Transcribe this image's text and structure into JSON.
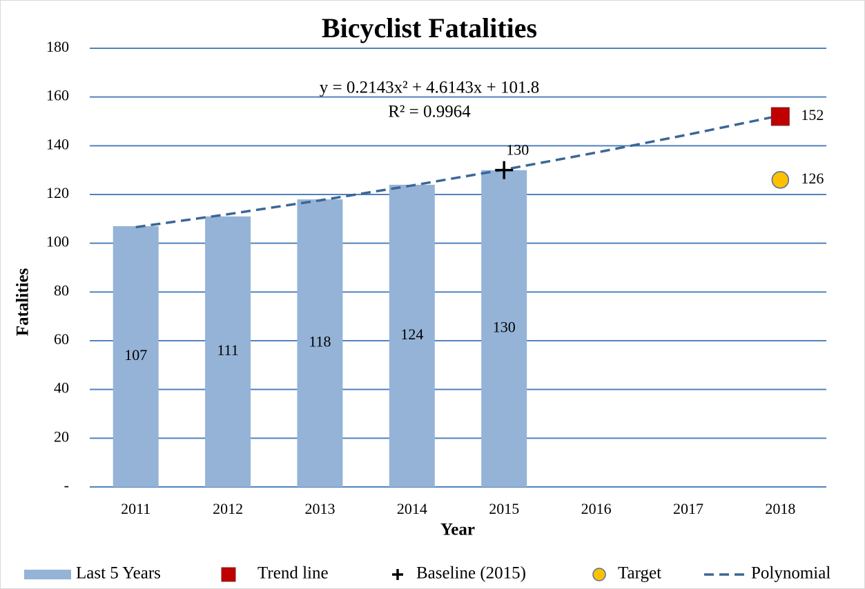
{
  "chart_data": {
    "type": "bar",
    "title": "Bicyclist Fatalities",
    "x_label": "Year",
    "y_label": "Fatalities",
    "annotations": [
      "y = 0.2143x² + 4.6143x + 101.8",
      "R² = 0.9964"
    ],
    "categories": [
      "2011",
      "2012",
      "2013",
      "2014",
      "2015",
      "2016",
      "2017",
      "2018"
    ],
    "ylim": [
      0,
      180
    ],
    "yticks": [
      {
        "value": 0,
        "label": "-"
      },
      20,
      40,
      60,
      80,
      100,
      120,
      140,
      160,
      180
    ],
    "grid": true,
    "legend": "bottom",
    "series": [
      {
        "name": "Last 5 Years",
        "type": "bar",
        "color": "#95b3d7",
        "values": [
          107,
          111,
          118,
          124,
          130,
          null,
          null,
          null
        ]
      },
      {
        "name": "Trend line",
        "type": "square",
        "color": "#c00000",
        "values": [
          null,
          null,
          null,
          null,
          null,
          null,
          null,
          152
        ]
      },
      {
        "name": "Baseline (2015)",
        "type": "plus",
        "color": "#000000",
        "values": [
          null,
          null,
          null,
          null,
          130,
          null,
          null,
          null
        ]
      },
      {
        "name": "Target",
        "type": "circle",
        "color": "#ffc000",
        "values": [
          null,
          null,
          null,
          null,
          null,
          null,
          null,
          126
        ]
      },
      {
        "name": "Polynomial",
        "type": "line",
        "color": "#3c6696",
        "values": [
          106.6,
          111.9,
          117.6,
          123.7,
          130.2,
          137.2,
          144.6,
          152.4
        ]
      }
    ]
  }
}
